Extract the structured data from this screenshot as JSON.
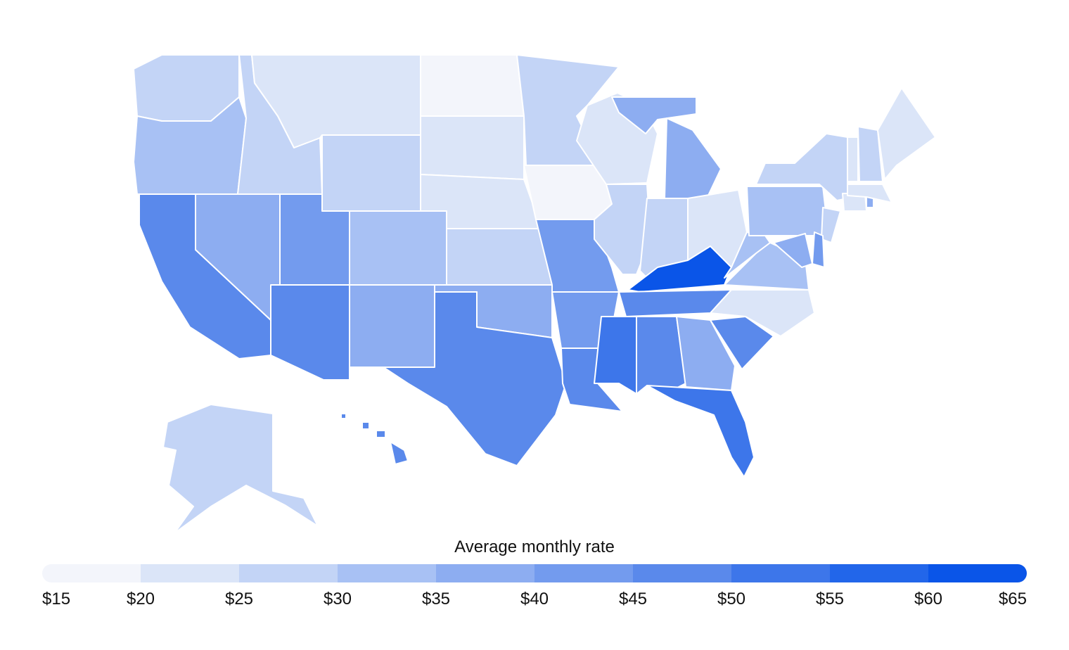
{
  "legend": {
    "title": "Average monthly rate",
    "ticks": [
      "$15",
      "$20",
      "$25",
      "$30",
      "$35",
      "$40",
      "$45",
      "$50",
      "$55",
      "$60",
      "$65"
    ],
    "colors": [
      "#f3f5fb",
      "#dbe5f8",
      "#c3d4f6",
      "#a8c1f4",
      "#8dadf1",
      "#739bee",
      "#5a89eb",
      "#3d76ea",
      "#2266ea",
      "#0a55e8"
    ]
  },
  "chart_data": {
    "type": "choropleth",
    "metric": "Average monthly rate",
    "unit": "$",
    "scale": {
      "min": 15,
      "max": 65,
      "step": 5
    },
    "values": {
      "WA": 27,
      "OR": 32,
      "CA": 48,
      "NV": 37,
      "ID": 26,
      "MT": 22,
      "WY": 27,
      "UT": 42,
      "AZ": 47,
      "CO": 32,
      "NM": 37,
      "ND": 17,
      "SD": 22,
      "NE": 21,
      "KS": 27,
      "OK": 38,
      "TX": 48,
      "MN": 26,
      "IA": 18,
      "MO": 42,
      "AR": 40,
      "LA": 45,
      "WI": 23,
      "IL": 27,
      "MI": 38,
      "IN": 27,
      "OH": 24,
      "KY": 64,
      "TN": 45,
      "MS": 50,
      "AL": 47,
      "GA": 38,
      "FL": 53,
      "SC": 46,
      "NC": 21,
      "VA": 31,
      "WV": 32,
      "PA": 32,
      "NY": 26,
      "NJ": 27,
      "DE": 40,
      "MD": 37,
      "CT": 24,
      "RI": 37,
      "MA": 22,
      "VT": 22,
      "NH": 27,
      "ME": 22,
      "AK": 26,
      "HI": 47
    }
  }
}
